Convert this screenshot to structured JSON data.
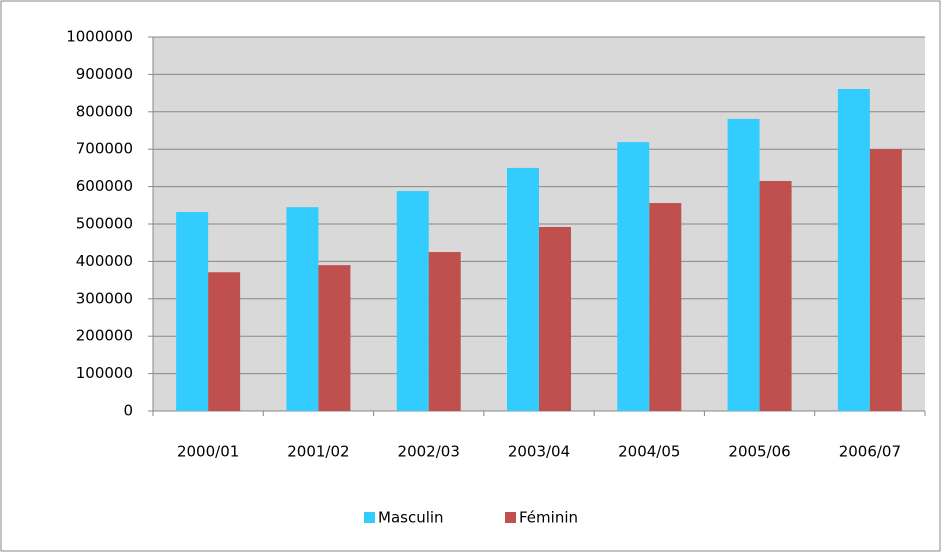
{
  "chart_data": {
    "type": "bar",
    "categories": [
      "2000/01",
      "2001/02",
      "2002/03",
      "2003/04",
      "2004/05",
      "2005/06",
      "2006/07"
    ],
    "series": [
      {
        "name": "Masculin",
        "color": "#33ccff",
        "values": [
          532000,
          545000,
          588000,
          650000,
          719000,
          781000,
          861000
        ]
      },
      {
        "name": "Féminin",
        "color": "#c0504d",
        "values": [
          371000,
          390000,
          425000,
          492000,
          556000,
          615000,
          700000
        ]
      }
    ],
    "ylim": [
      0,
      1000000
    ],
    "yticks": [
      0,
      100000,
      200000,
      300000,
      400000,
      500000,
      600000,
      700000,
      800000,
      900000,
      1000000
    ],
    "grid": true,
    "legend": "bottom"
  }
}
